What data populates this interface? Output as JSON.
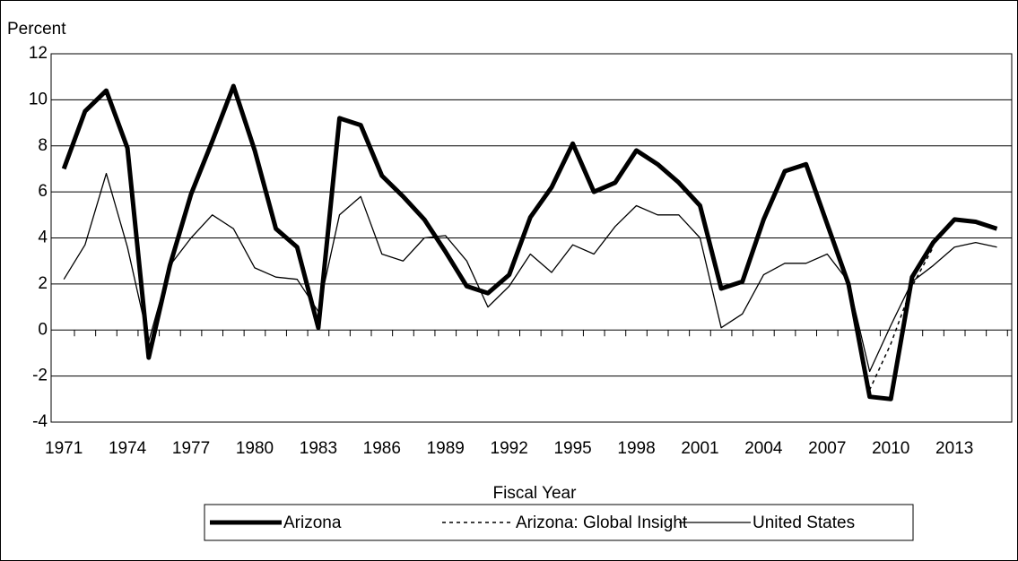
{
  "chart_data": {
    "type": "line",
    "y_label": "Percent",
    "x_label": "Fiscal Year",
    "x": [
      1971,
      1972,
      1973,
      1974,
      1975,
      1976,
      1977,
      1978,
      1979,
      1980,
      1981,
      1982,
      1983,
      1984,
      1985,
      1986,
      1987,
      1988,
      1989,
      1990,
      1991,
      1992,
      1993,
      1994,
      1995,
      1996,
      1997,
      1998,
      1999,
      2000,
      2001,
      2002,
      2003,
      2004,
      2005,
      2006,
      2007,
      2008,
      2009,
      2010,
      2011,
      2012,
      2013,
      2014,
      2015
    ],
    "series": [
      {
        "name": "Arizona",
        "color": "#000000",
        "width": 5,
        "dash": "none",
        "values": [
          7.0,
          9.5,
          10.4,
          7.9,
          -1.2,
          2.8,
          5.9,
          8.2,
          10.6,
          7.8,
          4.4,
          3.6,
          0.1,
          9.2,
          8.9,
          6.7,
          5.8,
          4.8,
          3.4,
          1.9,
          1.6,
          2.4,
          4.9,
          6.2,
          8.1,
          6.0,
          6.4,
          7.8,
          7.2,
          6.4,
          5.4,
          1.8,
          2.1,
          4.8,
          6.9,
          7.2,
          4.6,
          2.0,
          -2.9,
          -3.0,
          2.3,
          3.8,
          4.8,
          4.7,
          4.4
        ]
      },
      {
        "name": "Arizona: Global Insight",
        "color": "#000000",
        "width": 1.5,
        "dash": "4 4",
        "values": [
          null,
          null,
          null,
          null,
          null,
          null,
          null,
          null,
          null,
          null,
          null,
          null,
          null,
          null,
          null,
          null,
          null,
          null,
          null,
          null,
          null,
          null,
          null,
          null,
          null,
          null,
          null,
          null,
          null,
          null,
          null,
          null,
          null,
          null,
          null,
          null,
          null,
          2.0,
          -2.6,
          -0.6,
          1.9,
          3.6,
          null,
          null,
          null
        ]
      },
      {
        "name": "United States",
        "color": "#000000",
        "width": 1.3,
        "dash": "none",
        "values": [
          2.2,
          3.7,
          6.8,
          3.6,
          -0.5,
          2.8,
          4.0,
          5.0,
          4.4,
          2.7,
          2.3,
          2.2,
          0.8,
          5.0,
          5.8,
          3.3,
          3.0,
          4.0,
          4.1,
          3.0,
          1.0,
          1.9,
          3.3,
          2.5,
          3.7,
          3.3,
          4.5,
          5.4,
          5.0,
          5.0,
          4.0,
          0.1,
          0.7,
          2.4,
          2.9,
          2.9,
          3.3,
          2.1,
          -1.8,
          0.2,
          2.1,
          2.8,
          3.6,
          3.8,
          3.6
        ]
      }
    ],
    "xlim": [
      1970.4,
      2015.7
    ],
    "xticks": [
      1971,
      1974,
      1977,
      1980,
      1983,
      1986,
      1989,
      1992,
      1995,
      1998,
      2001,
      2004,
      2007,
      2010,
      2013
    ],
    "ylim": [
      -4,
      12
    ],
    "yticks": [
      -4,
      -2,
      0,
      2,
      4,
      6,
      8,
      10,
      12
    ],
    "grid": true,
    "legend": "bottom"
  }
}
